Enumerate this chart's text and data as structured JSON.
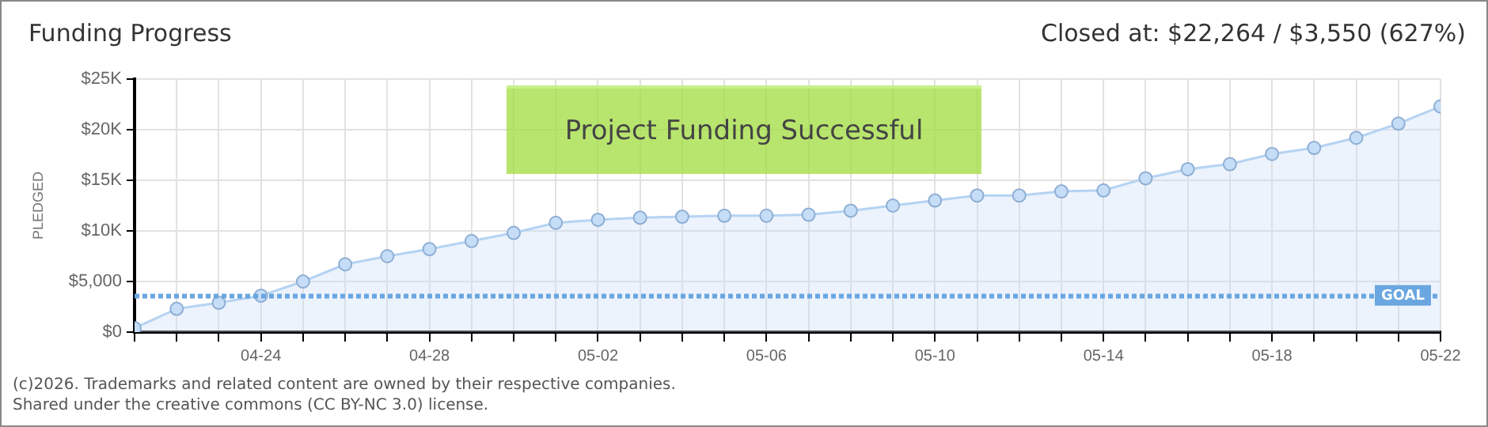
{
  "chart_data": {
    "type": "area",
    "title": "Funding Progress",
    "ylabel": "PLEDGED",
    "annotations": [
      "Closed at:  $22,264 /  $3,550 (627%)",
      "Project Funding Successful",
      "(c)2026. Trademarks and related content are owned by their respective companies.",
      "Shared under the creative commons (CC BY-NC 3.0) license."
    ],
    "x": [
      "--04-21",
      "--04-22",
      "--04-23",
      "--04-24",
      "--04-25",
      "--04-26",
      "--04-27",
      "--04-28",
      "--04-29",
      "--04-30",
      "--05-01",
      "--05-02",
      "--05-03",
      "--05-04",
      "--05-05",
      "--05-06",
      "--05-07",
      "--05-08",
      "--05-09",
      "--05-10",
      "--05-11",
      "--05-12",
      "--05-13",
      "--05-14",
      "--05-15",
      "--05-16",
      "--05-17",
      "--05-18",
      "--05-19",
      "--05-20",
      "--05-21",
      "--05-22"
    ],
    "series": [
      {
        "color": "#b5d3f3",
        "values": [
          400,
          2300,
          2900,
          3600,
          5000,
          6700,
          7500,
          8200,
          9000,
          9800,
          10800,
          11100,
          11300,
          11400,
          11500,
          11500,
          11600,
          12000,
          12500,
          13000,
          13500,
          13500,
          13900,
          14000,
          15200,
          16100,
          16600,
          17600,
          18200,
          19200,
          20600,
          22300
        ]
      }
    ],
    "xlim": [
      "--04-21",
      "--05-22"
    ],
    "xticks": [
      {
        "value": "--04-21",
        "label": null
      },
      {
        "value": "--04-22",
        "label": null
      },
      {
        "value": "--04-23",
        "label": null
      },
      {
        "value": "--04-24",
        "label": "04-24"
      },
      {
        "value": "--04-25",
        "label": null
      },
      {
        "value": "--04-26",
        "label": null
      },
      {
        "value": "--04-27",
        "label": null
      },
      {
        "value": "--04-28",
        "label": "04-28"
      },
      {
        "value": "--04-29",
        "label": null
      },
      {
        "value": "--04-30",
        "label": null
      },
      {
        "value": "--05-01",
        "label": null
      },
      {
        "value": "--05-02",
        "label": "05-02"
      },
      {
        "value": "--05-03",
        "label": null
      },
      {
        "value": "--05-04",
        "label": null
      },
      {
        "value": "--05-05",
        "label": null
      },
      {
        "value": "--05-06",
        "label": "05-06"
      },
      {
        "value": "--05-07",
        "label": null
      },
      {
        "value": "--05-08",
        "label": null
      },
      {
        "value": "--05-09",
        "label": null
      },
      {
        "value": "--05-10",
        "label": "05-10"
      },
      {
        "value": "--05-11",
        "label": null
      },
      {
        "value": "--05-12",
        "label": null
      },
      {
        "value": "--05-13",
        "label": null
      },
      {
        "value": "--05-14",
        "label": "05-14"
      },
      {
        "value": "--05-15",
        "label": null
      },
      {
        "value": "--05-16",
        "label": null
      },
      {
        "value": "--05-17",
        "label": null
      },
      {
        "value": "--05-18",
        "label": "05-18"
      },
      {
        "value": "--05-19",
        "label": null
      },
      {
        "value": "--05-20",
        "label": null
      },
      {
        "value": "--05-21",
        "label": null
      },
      {
        "value": "--05-22",
        "label": "05-22"
      }
    ],
    "ylim": [
      0,
      25000
    ],
    "yticks": [
      {
        "value": 0,
        "label": "$0"
      },
      {
        "value": 5000,
        "label": "$5,000"
      },
      {
        "value": 10000,
        "label": "$10K"
      },
      {
        "value": 15000,
        "label": "$15K"
      },
      {
        "value": 20000,
        "label": "$20K"
      },
      {
        "value": 25000,
        "label": "$25K"
      }
    ],
    "ref_lines": [
      {
        "axis": "y",
        "value": 3550,
        "label": "GOAL",
        "color": "#6aa6e0",
        "line_style": "dotted"
      }
    ],
    "grid": true,
    "legend": false,
    "marker": "circle"
  }
}
